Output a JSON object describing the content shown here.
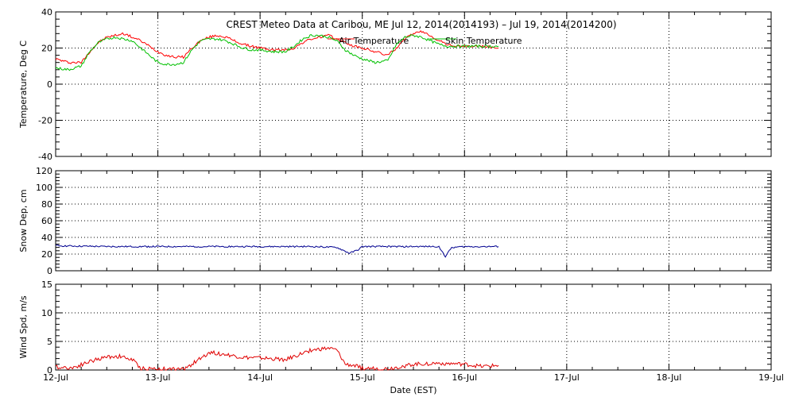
{
  "chart_data": {
    "type": "line",
    "title": "CREST Meteo Data at Caribou, ME   Jul 12, 2014(2014193) – Jul 19, 2014(2014200)",
    "xlabel": "Date (EST)",
    "x_ticks": [
      "12-Jul",
      "13-Jul",
      "14-Jul",
      "15-Jul",
      "16-Jul",
      "17-Jul",
      "18-Jul",
      "19-Jul"
    ],
    "xlim": [
      "2014-07-12 00:00",
      "2014-07-19 00:00"
    ],
    "grid": true,
    "panels": [
      {
        "ylabel": "Temperature, Deg C",
        "ylim": [
          -40,
          40
        ],
        "y_ticks": [
          -40,
          -20,
          0,
          20,
          40
        ],
        "legend": "top-center",
        "series": [
          {
            "name": "Air Temperature",
            "color": "#ff0000",
            "points": [
              [
                "2014-07-12 00:00",
                14
              ],
              [
                "2014-07-12 03:00",
                12
              ],
              [
                "2014-07-12 06:00",
                12
              ],
              [
                "2014-07-12 08:00",
                18
              ],
              [
                "2014-07-12 10:00",
                23
              ],
              [
                "2014-07-12 12:00",
                26
              ],
              [
                "2014-07-12 14:00",
                27
              ],
              [
                "2014-07-12 16:00",
                28
              ],
              [
                "2014-07-12 18:00",
                26
              ],
              [
                "2014-07-12 20:00",
                24
              ],
              [
                "2014-07-12 22:00",
                21
              ],
              [
                "2014-07-13 00:00",
                18
              ],
              [
                "2014-07-13 02:00",
                16
              ],
              [
                "2014-07-13 04:00",
                15
              ],
              [
                "2014-07-13 06:00",
                15
              ],
              [
                "2014-07-13 08:00",
                20
              ],
              [
                "2014-07-13 10:00",
                24
              ],
              [
                "2014-07-13 12:00",
                26
              ],
              [
                "2014-07-13 14:00",
                27
              ],
              [
                "2014-07-13 16:00",
                26
              ],
              [
                "2014-07-13 18:00",
                24
              ],
              [
                "2014-07-13 20:00",
                22
              ],
              [
                "2014-07-13 22:00",
                21
              ],
              [
                "2014-07-14 00:00",
                20
              ],
              [
                "2014-07-14 03:00",
                19
              ],
              [
                "2014-07-14 06:00",
                19
              ],
              [
                "2014-07-14 08:00",
                20
              ],
              [
                "2014-07-14 10:00",
                23
              ],
              [
                "2014-07-14 12:00",
                25
              ],
              [
                "2014-07-14 14:00",
                26
              ],
              [
                "2014-07-14 16:00",
                27
              ],
              [
                "2014-07-14 18:00",
                25
              ],
              [
                "2014-07-14 20:00",
                23
              ],
              [
                "2014-07-14 22:00",
                21
              ],
              [
                "2014-07-15 00:00",
                20
              ],
              [
                "2014-07-15 03:00",
                18
              ],
              [
                "2014-07-15 06:00",
                16
              ],
              [
                "2014-07-15 08:00",
                20
              ],
              [
                "2014-07-15 10:00",
                25
              ],
              [
                "2014-07-15 12:00",
                28
              ],
              [
                "2014-07-15 14:00",
                29
              ],
              [
                "2014-07-15 16:00",
                27
              ],
              [
                "2014-07-15 18:00",
                24
              ],
              [
                "2014-07-15 20:00",
                22
              ],
              [
                "2014-07-15 22:00",
                21
              ],
              [
                "2014-07-16 00:00",
                21
              ],
              [
                "2014-07-16 04:00",
                21
              ],
              [
                "2014-07-16 08:00",
                20
              ]
            ]
          },
          {
            "name": "Skin Temperature",
            "color": "#00c000",
            "points": [
              [
                "2014-07-12 00:00",
                9
              ],
              [
                "2014-07-12 03:00",
                8
              ],
              [
                "2014-07-12 06:00",
                10
              ],
              [
                "2014-07-12 08:00",
                18
              ],
              [
                "2014-07-12 10:00",
                23
              ],
              [
                "2014-07-12 12:00",
                25
              ],
              [
                "2014-07-12 14:00",
                26
              ],
              [
                "2014-07-12 16:00",
                25
              ],
              [
                "2014-07-12 18:00",
                24
              ],
              [
                "2014-07-12 20:00",
                20
              ],
              [
                "2014-07-12 22:00",
                16
              ],
              [
                "2014-07-13 00:00",
                12
              ],
              [
                "2014-07-13 02:00",
                11
              ],
              [
                "2014-07-13 04:00",
                11
              ],
              [
                "2014-07-13 06:00",
                12
              ],
              [
                "2014-07-13 08:00",
                19
              ],
              [
                "2014-07-13 10:00",
                24
              ],
              [
                "2014-07-13 12:00",
                25
              ],
              [
                "2014-07-13 14:00",
                25
              ],
              [
                "2014-07-13 16:00",
                24
              ],
              [
                "2014-07-13 18:00",
                22
              ],
              [
                "2014-07-13 20:00",
                20
              ],
              [
                "2014-07-13 22:00",
                19
              ],
              [
                "2014-07-14 00:00",
                19
              ],
              [
                "2014-07-14 03:00",
                18
              ],
              [
                "2014-07-14 06:00",
                18
              ],
              [
                "2014-07-14 08:00",
                21
              ],
              [
                "2014-07-14 10:00",
                25
              ],
              [
                "2014-07-14 12:00",
                27
              ],
              [
                "2014-07-14 14:00",
                27
              ],
              [
                "2014-07-14 16:00",
                26
              ],
              [
                "2014-07-14 18:00",
                24
              ],
              [
                "2014-07-14 20:00",
                19
              ],
              [
                "2014-07-14 22:00",
                16
              ],
              [
                "2014-07-15 00:00",
                14
              ],
              [
                "2014-07-15 03:00",
                12
              ],
              [
                "2014-07-15 06:00",
                13
              ],
              [
                "2014-07-15 08:00",
                22
              ],
              [
                "2014-07-15 10:00",
                26
              ],
              [
                "2014-07-15 12:00",
                27
              ],
              [
                "2014-07-15 14:00",
                26
              ],
              [
                "2014-07-15 16:00",
                24
              ],
              [
                "2014-07-15 18:00",
                22
              ],
              [
                "2014-07-15 20:00",
                21
              ],
              [
                "2014-07-15 22:00",
                21
              ],
              [
                "2014-07-16 00:00",
                21
              ],
              [
                "2014-07-16 04:00",
                21
              ],
              [
                "2014-07-16 08:00",
                21
              ]
            ]
          }
        ]
      },
      {
        "ylabel": "Snow Dep, cm",
        "ylim": [
          0,
          120
        ],
        "y_ticks": [
          0,
          20,
          40,
          60,
          80,
          100,
          120
        ],
        "series": [
          {
            "name": "",
            "color": "#000090",
            "points": [
              [
                "2014-07-12 00:00",
                30
              ],
              [
                "2014-07-12 12:00",
                29
              ],
              [
                "2014-07-13 00:00",
                29
              ],
              [
                "2014-07-13 12:00",
                29
              ],
              [
                "2014-07-14 00:00",
                29
              ],
              [
                "2014-07-14 12:00",
                29
              ],
              [
                "2014-07-14 18:00",
                28
              ],
              [
                "2014-07-14 21:00",
                21
              ],
              [
                "2014-07-14 23:00",
                25
              ],
              [
                "2014-07-15 00:00",
                29
              ],
              [
                "2014-07-15 12:00",
                29
              ],
              [
                "2014-07-15 18:00",
                29
              ],
              [
                "2014-07-15 19:30",
                17
              ],
              [
                "2014-07-15 21:00",
                28
              ],
              [
                "2014-07-16 00:00",
                29
              ],
              [
                "2014-07-16 08:00",
                29
              ]
            ]
          }
        ]
      },
      {
        "ylabel": "Wind Spd, m/s",
        "ylim": [
          0,
          15
        ],
        "y_ticks": [
          0,
          5,
          10,
          15
        ],
        "series": [
          {
            "name": "",
            "color": "#e00000",
            "points": [
              [
                "2014-07-12 00:00",
                0.5
              ],
              [
                "2014-07-12 04:00",
                0.4
              ],
              [
                "2014-07-12 08:00",
                1.5
              ],
              [
                "2014-07-12 12:00",
                2.3
              ],
              [
                "2014-07-12 15:00",
                2.4
              ],
              [
                "2014-07-12 18:00",
                1.8
              ],
              [
                "2014-07-12 20:00",
                0.3
              ],
              [
                "2014-07-13 00:00",
                0.2
              ],
              [
                "2014-07-13 06:00",
                0.1
              ],
              [
                "2014-07-13 10:00",
                2.0
              ],
              [
                "2014-07-13 12:00",
                3.1
              ],
              [
                "2014-07-13 16:00",
                2.7
              ],
              [
                "2014-07-13 20:00",
                2.2
              ],
              [
                "2014-07-14 00:00",
                2.1
              ],
              [
                "2014-07-14 06:00",
                1.8
              ],
              [
                "2014-07-14 12:00",
                3.5
              ],
              [
                "2014-07-14 16:00",
                3.8
              ],
              [
                "2014-07-14 18:00",
                3.5
              ],
              [
                "2014-07-14 20:00",
                1.0
              ],
              [
                "2014-07-14 22:00",
                0.8
              ],
              [
                "2014-07-15 00:00",
                0.3
              ],
              [
                "2014-07-15 06:00",
                0.2
              ],
              [
                "2014-07-15 12:00",
                1.0
              ],
              [
                "2014-07-15 18:00",
                1.2
              ],
              [
                "2014-07-16 00:00",
                1.0
              ],
              [
                "2014-07-16 04:00",
                0.6
              ],
              [
                "2014-07-16 08:00",
                0.8
              ]
            ]
          }
        ]
      }
    ]
  }
}
